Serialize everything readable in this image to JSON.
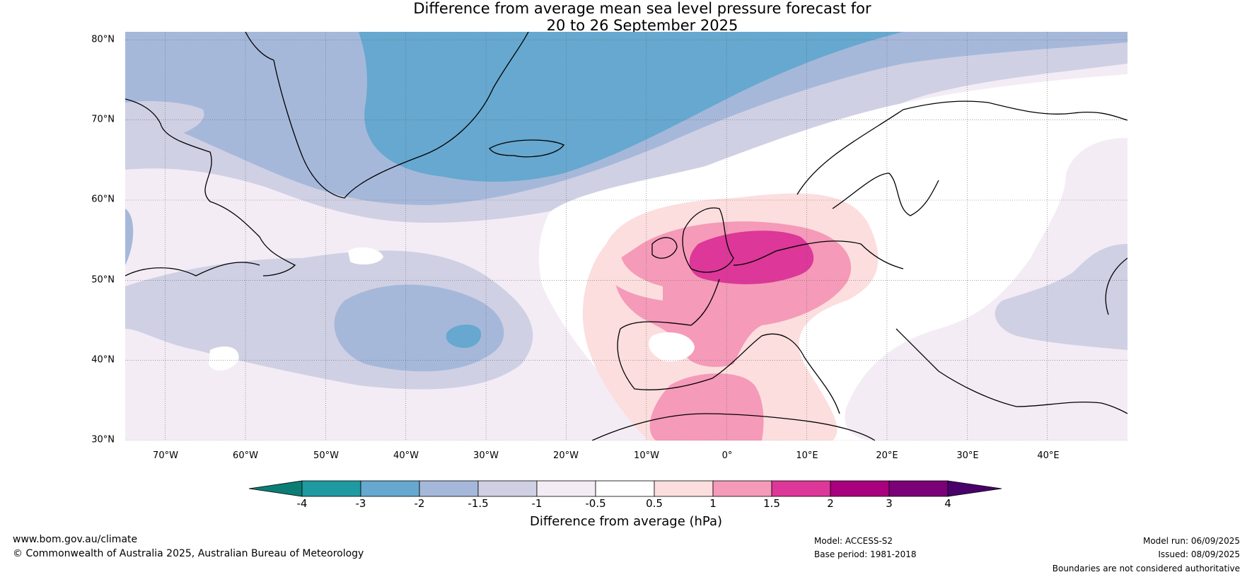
{
  "title": {
    "line1": "Difference from average mean sea level pressure forecast for",
    "line2": "20 to 26 September 2025"
  },
  "map": {
    "lat_labels": [
      "80°N",
      "70°N",
      "60°N",
      "50°N",
      "40°N",
      "30°N"
    ],
    "lon_labels": [
      "70°W",
      "60°W",
      "50°W",
      "40°W",
      "30°W",
      "20°W",
      "10°W",
      "0°",
      "10°E",
      "20°E",
      "30°E",
      "40°E"
    ],
    "extent": {
      "lon_min": -75,
      "lon_max": 50,
      "lat_min": 30,
      "lat_max": 81
    }
  },
  "colorbar": {
    "title": "Difference from average (hPa)",
    "tick_labels": [
      "-4",
      "-3",
      "-2",
      "-1.5",
      "-1",
      "-0.5",
      "0.5",
      "1",
      "1.5",
      "2",
      "3",
      "4"
    ],
    "colors": {
      "lt_-4": "#0b7d74",
      "-4_-3": "#1e9aa0",
      "-3_-2": "#66a8cf",
      "-2_-1.5": "#a6b8da",
      "-1.5_-1": "#d0d0e4",
      "-1_-0.5": "#f3ecf5",
      "-0.5_0.5": "#ffffff",
      "0.5_1": "#fcdede",
      "1_1.5": "#f59ab8",
      "1.5_2": "#dc3799",
      "2_3": "#a8007e",
      "3_4": "#7a0177",
      "gt_4": "#49006a"
    }
  },
  "footer": {
    "website": "www.bom.gov.au/climate",
    "copyright": "© Commonwealth of Australia 2025, Australian Bureau of Meteorology",
    "model": "Model: ACCESS-S2",
    "base_period": "Base period: 1981-2018",
    "model_run": "Model run: 06/09/2025",
    "issued": "Issued: 08/09/2025",
    "disclaimer": "Boundaries are not considered authoritative"
  }
}
